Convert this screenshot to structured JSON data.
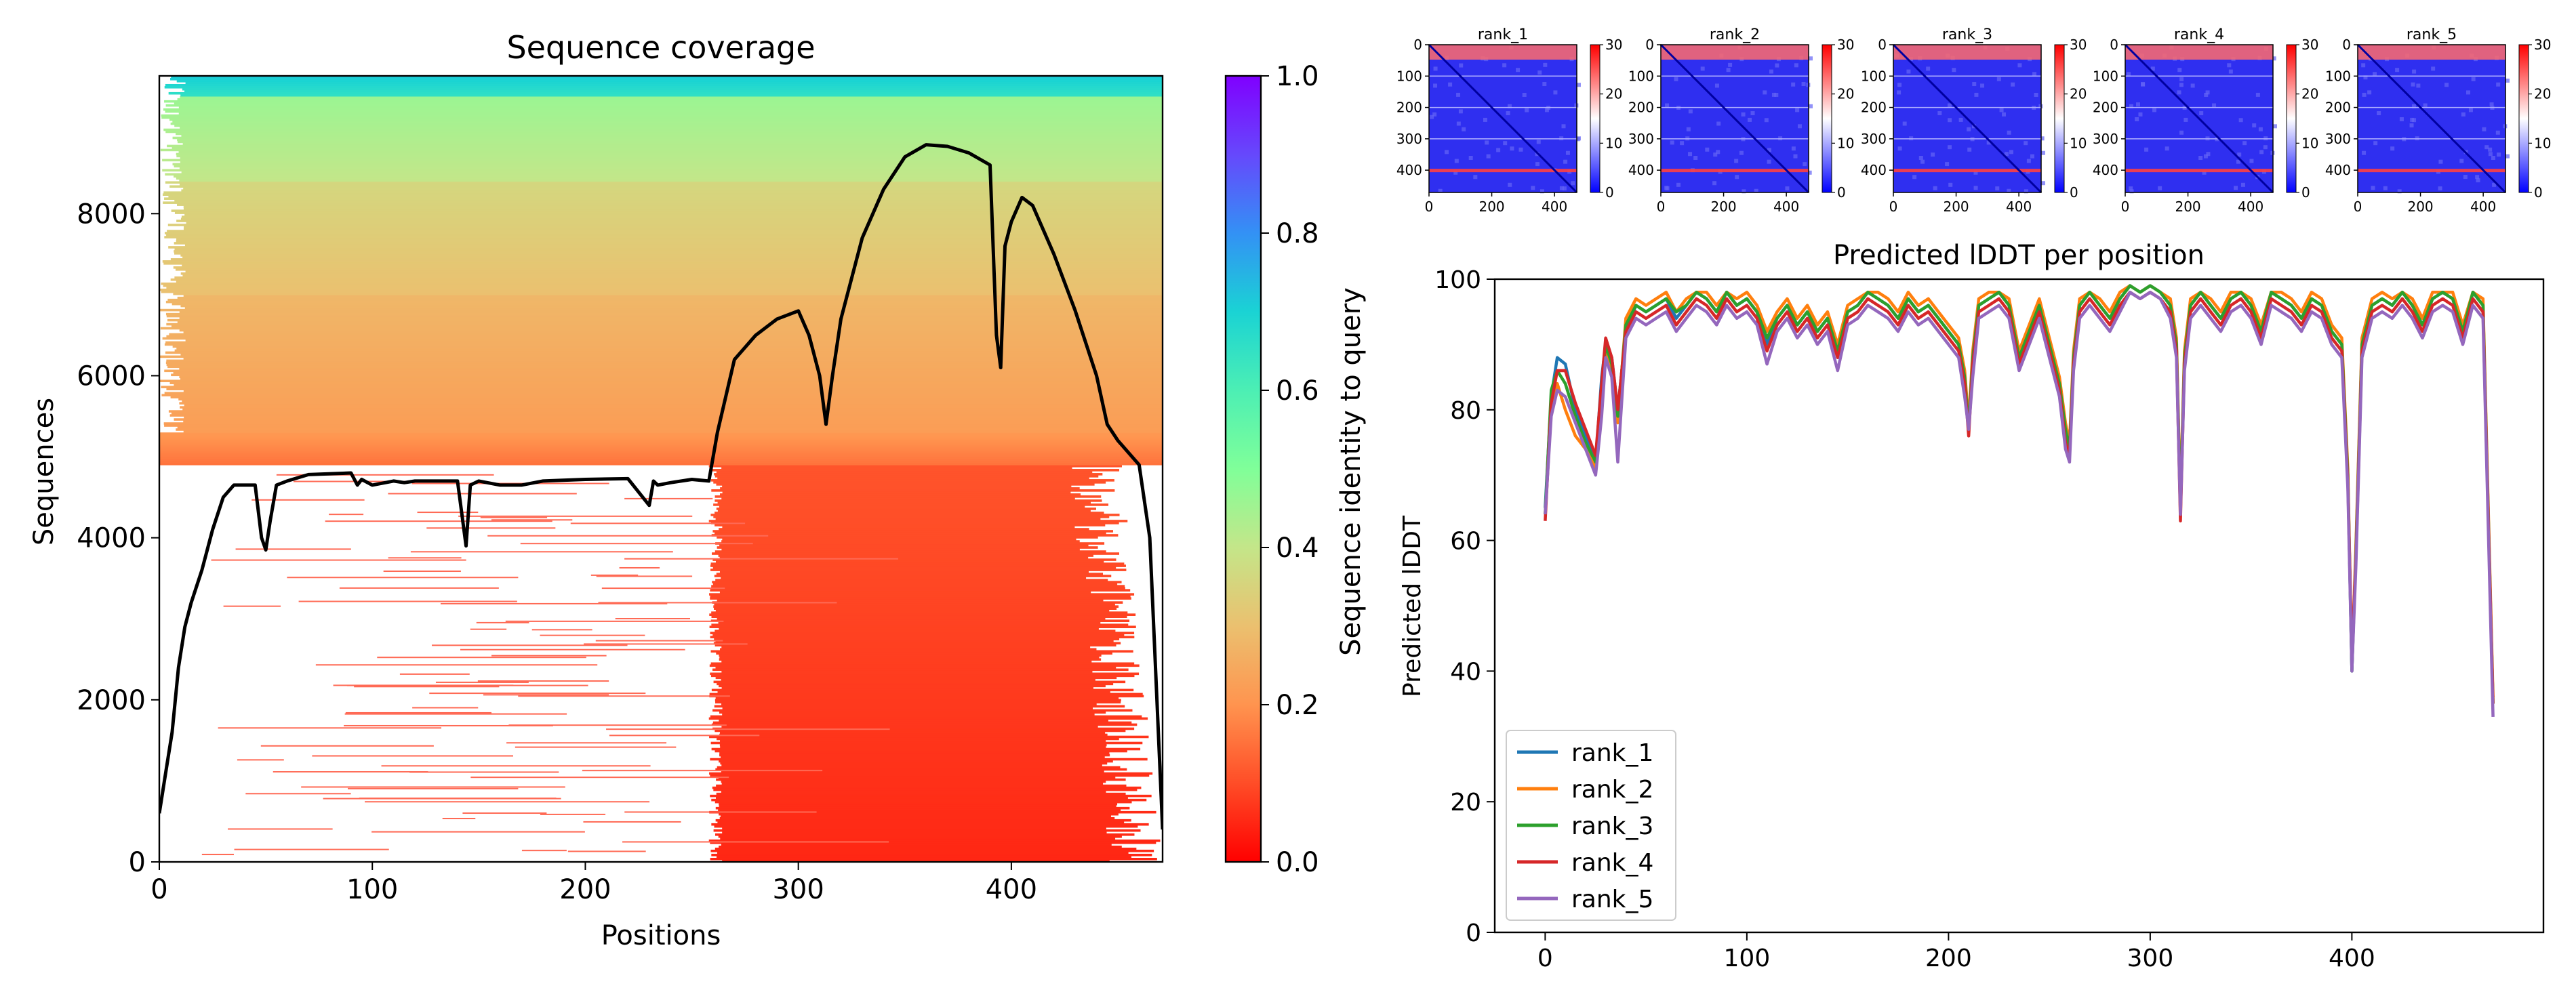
{
  "chart_data": [
    {
      "type": "heatmap",
      "title": "Sequence coverage",
      "xlabel": "Positions",
      "ylabel": "Sequences",
      "xlim": [
        0,
        471
      ],
      "ylim": [
        0,
        9700
      ],
      "xticks": [
        0,
        100,
        200,
        300,
        400
      ],
      "yticks": [
        0,
        2000,
        4000,
        6000,
        8000
      ],
      "colorbar": {
        "label": "Sequence identity to query",
        "range": [
          0.0,
          1.0
        ],
        "ticks": [
          "0.0",
          "0.2",
          "0.4",
          "0.6",
          "0.8",
          "1.0"
        ],
        "colormap": "rainbow_r"
      },
      "bands": [
        {
          "y_from": 0,
          "y_to": 4900,
          "x_from": 258,
          "x_to": 471,
          "identity": 0.05
        },
        {
          "y_from": 4900,
          "y_to": 5300,
          "x_from": 0,
          "x_to": 471,
          "identity": 0.15
        },
        {
          "y_from": 5300,
          "y_to": 7000,
          "x_from": 0,
          "x_to": 471,
          "identity": 0.22
        },
        {
          "y_from": 7000,
          "y_to": 8400,
          "x_from": 0,
          "x_to": 471,
          "identity": 0.3
        },
        {
          "y_from": 8400,
          "y_to": 9450,
          "x_from": 0,
          "x_to": 471,
          "identity": 0.4
        },
        {
          "y_from": 9450,
          "y_to": 9700,
          "x_from": 0,
          "x_to": 471,
          "identity": 0.65
        }
      ],
      "coverage_line": {
        "color": "#000000",
        "x": [
          0,
          3,
          6,
          9,
          12,
          15,
          20,
          25,
          30,
          35,
          40,
          45,
          48,
          50,
          52,
          55,
          60,
          70,
          90,
          93,
          95,
          100,
          110,
          115,
          120,
          140,
          144,
          146,
          150,
          160,
          170,
          180,
          200,
          220,
          230,
          232,
          234,
          240,
          250,
          258,
          262,
          270,
          280,
          290,
          300,
          305,
          310,
          313,
          316,
          320,
          330,
          340,
          350,
          360,
          370,
          380,
          390,
          393,
          395,
          397,
          400,
          405,
          410,
          420,
          430,
          440,
          445,
          450,
          460,
          465,
          470,
          471
        ],
        "y": [
          600,
          1100,
          1600,
          2400,
          2900,
          3200,
          3600,
          4100,
          4500,
          4650,
          4650,
          4650,
          4000,
          3850,
          4200,
          4650,
          4700,
          4780,
          4800,
          4650,
          4720,
          4650,
          4700,
          4680,
          4700,
          4700,
          3900,
          4650,
          4700,
          4650,
          4650,
          4700,
          4720,
          4730,
          4400,
          4700,
          4650,
          4680,
          4720,
          4700,
          5300,
          6200,
          6500,
          6700,
          6800,
          6500,
          6000,
          5400,
          6000,
          6700,
          7700,
          8300,
          8700,
          8850,
          8830,
          8750,
          8600,
          6500,
          6100,
          7600,
          7900,
          8200,
          8100,
          7500,
          6800,
          6000,
          5400,
          5200,
          4900,
          4000,
          1000,
          400
        ]
      }
    },
    {
      "type": "heatmap",
      "title": "rank_1",
      "subplots_shared": {
        "xticks": [
          "0",
          "200",
          "400"
        ],
        "yticks": [
          "0",
          "100",
          "200",
          "300",
          "400"
        ],
        "range": [
          0,
          471
        ],
        "colorbar_ticks": [
          "0",
          "10",
          "20",
          "30"
        ],
        "colorbar_range": [
          0,
          30
        ],
        "colormap": "bwr"
      },
      "panels": [
        "rank_1",
        "rank_2",
        "rank_3",
        "rank_4",
        "rank_5"
      ]
    },
    {
      "type": "line",
      "title": "Predicted lDDT per position",
      "xlabel": "",
      "ylabel": "Predicted lDDT",
      "xlim": [
        -25,
        495
      ],
      "ylim": [
        0,
        100
      ],
      "xticks": [
        0,
        100,
        200,
        300,
        400
      ],
      "yticks": [
        0,
        20,
        40,
        60,
        80,
        100
      ],
      "legend": "lower-left",
      "x": [
        0,
        3,
        6,
        10,
        15,
        20,
        25,
        28,
        30,
        33,
        36,
        40,
        45,
        50,
        55,
        60,
        65,
        70,
        75,
        80,
        85,
        90,
        95,
        100,
        105,
        110,
        115,
        120,
        125,
        130,
        135,
        140,
        145,
        150,
        155,
        160,
        165,
        170,
        175,
        180,
        185,
        190,
        195,
        200,
        205,
        208,
        210,
        212,
        215,
        220,
        225,
        230,
        235,
        240,
        245,
        250,
        255,
        258,
        260,
        262,
        265,
        270,
        275,
        280,
        285,
        290,
        295,
        300,
        305,
        310,
        313,
        315,
        317,
        320,
        325,
        330,
        335,
        340,
        345,
        350,
        355,
        360,
        365,
        370,
        375,
        380,
        385,
        390,
        395,
        398,
        400,
        402,
        405,
        410,
        415,
        420,
        425,
        430,
        435,
        440,
        445,
        450,
        455,
        460,
        465,
        470
      ],
      "series": [
        {
          "name": "rank_1",
          "color": "#1f77b4",
          "values": [
            65,
            82,
            88,
            87,
            80,
            76,
            72,
            85,
            90,
            88,
            80,
            92,
            96,
            95,
            96,
            97,
            94,
            96,
            98,
            97,
            95,
            98,
            96,
            97,
            95,
            90,
            94,
            96,
            93,
            95,
            92,
            94,
            89,
            95,
            96,
            98,
            97,
            96,
            94,
            97,
            95,
            96,
            94,
            92,
            90,
            85,
            77,
            88,
            96,
            97,
            98,
            96,
            88,
            92,
            96,
            90,
            84,
            76,
            74,
            88,
            96,
            98,
            96,
            94,
            97,
            99,
            98,
            99,
            98,
            96,
            90,
            65,
            88,
            96,
            98,
            96,
            94,
            97,
            98,
            96,
            92,
            98,
            97,
            96,
            94,
            97,
            96,
            92,
            90,
            70,
            40,
            58,
            90,
            96,
            97,
            96,
            98,
            96,
            93,
            97,
            98,
            97,
            92,
            98,
            96,
            35
          ]
        },
        {
          "name": "rank_2",
          "color": "#ff7f0e",
          "values": [
            64,
            80,
            84,
            80,
            76,
            74,
            71,
            80,
            89,
            86,
            78,
            94,
            97,
            96,
            97,
            98,
            95,
            97,
            98,
            98,
            96,
            98,
            97,
            98,
            96,
            92,
            95,
            97,
            94,
            96,
            93,
            95,
            90,
            96,
            97,
            98,
            98,
            97,
            95,
            98,
            96,
            97,
            95,
            93,
            91,
            86,
            78,
            89,
            97,
            98,
            98,
            97,
            89,
            93,
            97,
            91,
            85,
            78,
            75,
            89,
            97,
            98,
            97,
            95,
            98,
            99,
            98,
            99,
            98,
            97,
            91,
            66,
            89,
            97,
            98,
            97,
            95,
            98,
            98,
            97,
            93,
            98,
            98,
            97,
            95,
            98,
            97,
            93,
            91,
            71,
            41,
            59,
            91,
            97,
            98,
            97,
            98,
            97,
            94,
            98,
            98,
            98,
            93,
            98,
            97,
            36
          ]
        },
        {
          "name": "rank_3",
          "color": "#2ca02c",
          "values": [
            64,
            83,
            86,
            84,
            79,
            75,
            72,
            83,
            90,
            87,
            79,
            93,
            96,
            95,
            96,
            97,
            95,
            96,
            98,
            97,
            95,
            98,
            96,
            97,
            95,
            91,
            94,
            96,
            93,
            95,
            92,
            94,
            89,
            95,
            96,
            98,
            97,
            96,
            94,
            97,
            95,
            96,
            94,
            92,
            90,
            85,
            77,
            88,
            96,
            97,
            98,
            96,
            88,
            92,
            96,
            90,
            84,
            77,
            74,
            88,
            96,
            98,
            96,
            94,
            97,
            99,
            98,
            99,
            98,
            96,
            90,
            65,
            88,
            96,
            98,
            96,
            94,
            97,
            98,
            96,
            92,
            98,
            97,
            96,
            94,
            97,
            96,
            92,
            90,
            70,
            40,
            58,
            90,
            96,
            97,
            96,
            98,
            96,
            93,
            97,
            98,
            97,
            92,
            98,
            96,
            35
          ]
        },
        {
          "name": "rank_4",
          "color": "#d62728",
          "values": [
            63,
            81,
            86,
            86,
            81,
            77,
            73,
            84,
            91,
            88,
            80,
            92,
            95,
            94,
            95,
            96,
            93,
            95,
            97,
            96,
            94,
            97,
            95,
            96,
            94,
            89,
            93,
            95,
            92,
            94,
            91,
            93,
            88,
            94,
            95,
            97,
            96,
            95,
            93,
            96,
            94,
            95,
            93,
            91,
            89,
            84,
            76,
            87,
            95,
            96,
            97,
            95,
            87,
            91,
            95,
            89,
            83,
            75,
            73,
            87,
            95,
            97,
            95,
            93,
            96,
            98,
            97,
            98,
            97,
            95,
            89,
            63,
            87,
            95,
            97,
            95,
            93,
            96,
            97,
            95,
            91,
            97,
            96,
            95,
            93,
            96,
            95,
            91,
            89,
            69,
            42,
            57,
            89,
            95,
            96,
            95,
            97,
            95,
            92,
            96,
            97,
            96,
            91,
            97,
            95,
            35
          ]
        },
        {
          "name": "rank_5",
          "color": "#9467bd",
          "values": [
            64,
            79,
            83,
            82,
            78,
            74,
            70,
            79,
            88,
            85,
            72,
            91,
            94,
            93,
            94,
            95,
            92,
            94,
            96,
            95,
            93,
            96,
            94,
            95,
            93,
            87,
            92,
            94,
            91,
            93,
            90,
            92,
            86,
            93,
            94,
            96,
            95,
            94,
            92,
            95,
            93,
            94,
            92,
            90,
            88,
            82,
            77,
            85,
            94,
            95,
            96,
            94,
            86,
            90,
            94,
            88,
            82,
            74,
            72,
            86,
            94,
            96,
            94,
            92,
            95,
            98,
            97,
            98,
            97,
            94,
            88,
            64,
            86,
            94,
            96,
            94,
            92,
            95,
            96,
            94,
            90,
            96,
            95,
            94,
            92,
            95,
            94,
            90,
            88,
            68,
            40,
            56,
            88,
            94,
            95,
            94,
            96,
            94,
            91,
            95,
            96,
            95,
            90,
            96,
            94,
            33
          ]
        }
      ]
    }
  ]
}
